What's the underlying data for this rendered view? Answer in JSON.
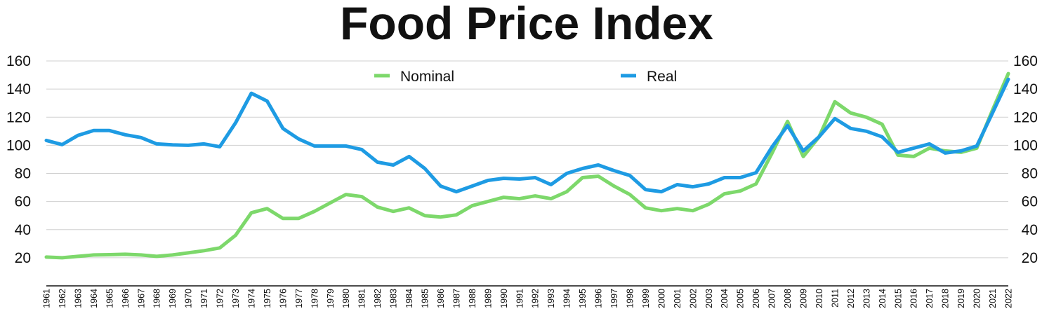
{
  "chart_data": {
    "type": "line",
    "title": "Food Price Index",
    "xlabel": "",
    "ylabel": "",
    "ylim": [
      0,
      160
    ],
    "yticks": [
      20,
      40,
      60,
      80,
      100,
      120,
      140,
      160
    ],
    "secondary_yaxis": true,
    "grid": true,
    "legend_position": "top",
    "x": [
      1961,
      1962,
      1963,
      1964,
      1965,
      1966,
      1967,
      1968,
      1969,
      1970,
      1971,
      1972,
      1973,
      1974,
      1975,
      1976,
      1977,
      1978,
      1979,
      1980,
      1981,
      1982,
      1983,
      1984,
      1985,
      1986,
      1987,
      1988,
      1989,
      1990,
      1991,
      1992,
      1993,
      1994,
      1995,
      1996,
      1997,
      1998,
      1999,
      2000,
      2001,
      2002,
      2003,
      2004,
      2005,
      2006,
      2007,
      2008,
      2009,
      2010,
      2011,
      2012,
      2013,
      2014,
      2015,
      2016,
      2017,
      2018,
      2019,
      2020,
      2021,
      2022
    ],
    "series": [
      {
        "name": "Nominal",
        "color": "#7dd86b",
        "values": [
          20.5,
          20,
          21,
          22,
          22.2,
          22.5,
          22,
          21,
          22,
          23.5,
          25,
          27,
          36,
          52,
          55,
          48,
          48,
          53,
          59,
          65,
          63.5,
          56,
          53,
          55.5,
          50,
          49,
          50.5,
          57,
          60,
          63,
          62,
          64,
          62,
          67,
          77,
          78,
          71,
          65,
          55.5,
          53.5,
          55,
          53.5,
          58,
          65.5,
          67.5,
          72.5,
          94,
          117,
          92,
          106,
          131,
          123,
          120,
          115,
          93,
          92,
          98,
          96,
          95,
          98,
          125,
          151
        ]
      },
      {
        "name": "Real",
        "color": "#1e9be3",
        "values": [
          103.5,
          100.5,
          107,
          110.5,
          110.5,
          107.5,
          105.5,
          101,
          100.3,
          100,
          101,
          99,
          116,
          137,
          131.5,
          112,
          104.5,
          99.5,
          99.5,
          99.5,
          97,
          88,
          86,
          92,
          83.5,
          71,
          67,
          71,
          75,
          76.5,
          76,
          77,
          72,
          80,
          83.5,
          86,
          82,
          78.5,
          68.5,
          67,
          72,
          70.5,
          72.5,
          77,
          77,
          80.5,
          98.5,
          114,
          96,
          106,
          119,
          112,
          110,
          106,
          95,
          98,
          101,
          94.5,
          96,
          99.5,
          123,
          147
        ]
      }
    ]
  }
}
